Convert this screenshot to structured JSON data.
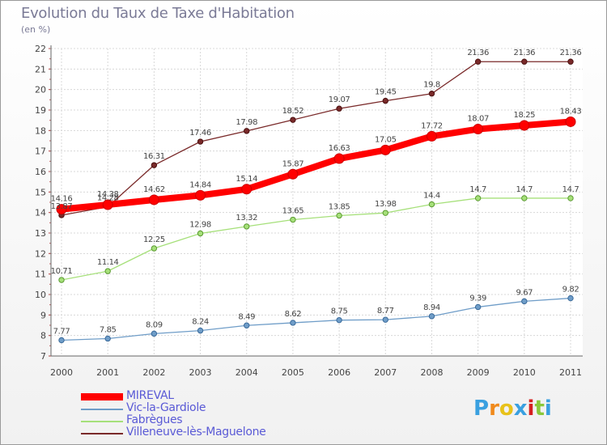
{
  "chart_data": {
    "type": "line",
    "title": "Evolution du Taux de Taxe d'Habitation",
    "subtitle": "(en %)",
    "xlabel": "",
    "ylabel": "",
    "categories": [
      "2000",
      "2001",
      "2002",
      "2003",
      "2004",
      "2005",
      "2006",
      "2007",
      "2008",
      "2009",
      "2010",
      "2011"
    ],
    "ylim": [
      7,
      22
    ],
    "yticks": [
      "7",
      "8",
      "9",
      "10",
      "11",
      "12",
      "13",
      "14",
      "15",
      "16",
      "17",
      "18",
      "19",
      "20",
      "21",
      "22"
    ],
    "grid": true,
    "legend_position": "bottom-left",
    "series": [
      {
        "name": "MIREVAL",
        "color": "#ff0000",
        "labels": [
          "14.16",
          "14.38",
          "14.62",
          "14.84",
          "15.14",
          "15.87",
          "16.63",
          "17.05",
          "17.72",
          "18.07",
          "18.25",
          "18.43"
        ],
        "values": [
          14.16,
          14.38,
          14.62,
          14.84,
          15.14,
          15.87,
          16.63,
          17.05,
          17.72,
          18.07,
          18.25,
          18.43
        ]
      },
      {
        "name": "Vic-la-Gardiole",
        "color": "#6f9dc8",
        "labels": [
          "7.77",
          "7.85",
          "8.09",
          "8.24",
          "8.49",
          "8.62",
          "8.75",
          "8.77",
          "8.94",
          "9.39",
          "9.67",
          "9.82"
        ],
        "values": [
          7.77,
          7.85,
          8.09,
          8.24,
          8.49,
          8.62,
          8.75,
          8.77,
          8.94,
          9.39,
          9.67,
          9.82
        ]
      },
      {
        "name": "Fabrègues",
        "color": "#a6e07a",
        "labels": [
          "10.71",
          "11.14",
          "12.25",
          "12.98",
          "13.32",
          "13.65",
          "13.85",
          "13.98",
          "14.4",
          "14.7",
          "14.7",
          "14.7"
        ],
        "values": [
          10.71,
          11.14,
          12.25,
          12.98,
          13.32,
          13.65,
          13.85,
          13.98,
          14.4,
          14.7,
          14.7,
          14.7
        ]
      },
      {
        "name": "Villeneuve-lès-Maguelone",
        "color": "#7a2a2a",
        "labels": [
          "13.87",
          "14.28",
          "16.31",
          "17.46",
          "17.98",
          "18.52",
          "19.07",
          "19.45",
          "19.8",
          "21.36",
          "21.36",
          "21.36"
        ],
        "values": [
          13.87,
          14.28,
          16.31,
          17.46,
          17.98,
          18.52,
          19.07,
          19.45,
          19.8,
          21.36,
          21.36,
          21.36
        ]
      }
    ]
  },
  "logo": {
    "letters": [
      "P",
      "r",
      "o",
      "x",
      "i",
      "t",
      "i"
    ],
    "colors": [
      "#3aa0e0",
      "#f08a1c",
      "#e8c21a",
      "#3aa0e0",
      "#d62020",
      "#8ac83a",
      "#3aa0e0"
    ]
  }
}
